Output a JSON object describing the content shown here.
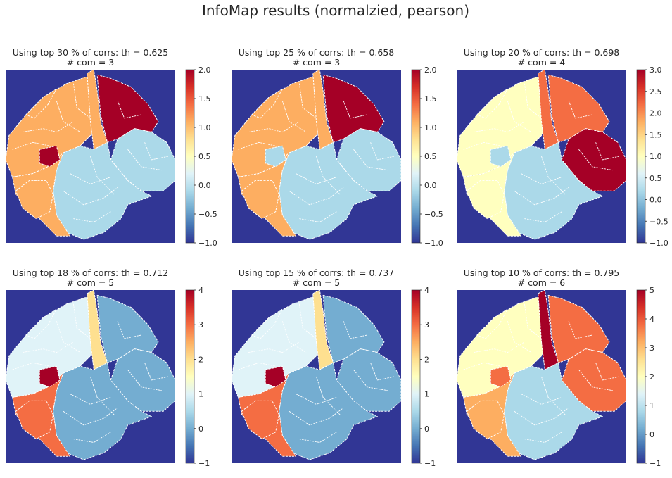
{
  "title": "InfoMap results (normalzied, pearson)",
  "colors": {
    "ocean": "#313695",
    "boundary": "#ffffff",
    "text": "#262626",
    "colormap": [
      "#313695",
      "#4575b4",
      "#74add1",
      "#abd9e9",
      "#e0f3f8",
      "#ffffbf",
      "#fee090",
      "#fdae61",
      "#f46d43",
      "#d73027",
      "#a50026"
    ]
  },
  "chart_data": [
    {
      "type": "heatmap",
      "title": "Using top 30 % of corrs: th = 0.625",
      "subtitle": "# com = 3",
      "vmin": -1,
      "vmax": 2,
      "colorbar_ticks": [
        "2.0",
        "1.5",
        "1.0",
        "0.5",
        "0.0",
        "−0.5",
        "−1.0"
      ],
      "region_values": {
        "left": 1,
        "left_pocket": 1,
        "lower_left": 1,
        "upper_left": 1,
        "north": 1,
        "upper_right": 2,
        "east": 0,
        "south": 0,
        "inset": 2
      }
    },
    {
      "type": "heatmap",
      "title": "Using top 25 % of corrs: th = 0.658",
      "subtitle": "# com = 3",
      "vmin": -1,
      "vmax": 2,
      "colorbar_ticks": [
        "2.0",
        "1.5",
        "1.0",
        "0.5",
        "0.0",
        "−0.5",
        "−1.0"
      ],
      "region_values": {
        "left": 1,
        "left_pocket": 1,
        "lower_left": 1,
        "upper_left": 1,
        "north": 1,
        "upper_right": 2,
        "east": 0,
        "south": 0,
        "inset": 0
      }
    },
    {
      "type": "heatmap",
      "title": "Using top 20 % of corrs: th = 0.698",
      "subtitle": "# com = 4",
      "vmin": -1,
      "vmax": 3,
      "colorbar_ticks": [
        "3.0",
        "2.5",
        "2.0",
        "1.5",
        "1.0",
        "0.5",
        "0.0",
        "−0.5",
        "−1.0"
      ],
      "region_values": {
        "left": 1,
        "left_pocket": 1,
        "lower_left": 1,
        "upper_left": 1,
        "north": 2,
        "upper_right": 2,
        "east": 3,
        "south": 0,
        "inset": 0
      }
    },
    {
      "type": "heatmap",
      "title": "Using top 18 % of corrs: th = 0.712",
      "subtitle": "# com = 5",
      "vmin": -1,
      "vmax": 4,
      "colorbar_ticks": [
        "4",
        "3",
        "2",
        "1",
        "0",
        "−1"
      ],
      "region_values": {
        "left": 1,
        "left_pocket": 3,
        "lower_left": 3,
        "upper_left": 1,
        "north": 2,
        "upper_right": 0,
        "east": 0,
        "south": 0,
        "inset": 4
      }
    },
    {
      "type": "heatmap",
      "title": "Using top 15 % of corrs: th = 0.737",
      "subtitle": "# com = 5",
      "vmin": -1,
      "vmax": 4,
      "colorbar_ticks": [
        "4",
        "3",
        "2",
        "1",
        "0",
        "−1"
      ],
      "region_values": {
        "left": 1,
        "left_pocket": 3,
        "lower_left": 3,
        "upper_left": 1,
        "north": 2,
        "upper_right": 0,
        "east": 0,
        "south": 0,
        "inset": 4
      }
    },
    {
      "type": "heatmap",
      "title": "Using top 10 % of corrs: th = 0.795",
      "subtitle": "# com = 6",
      "vmin": -1,
      "vmax": 5,
      "colorbar_ticks": [
        "5",
        "4",
        "3",
        "2",
        "1",
        "0",
        "−1"
      ],
      "region_values": {
        "left": 2,
        "left_pocket": 3,
        "lower_left": 3,
        "upper_left": 2,
        "north": 5,
        "upper_right": 4,
        "east": 4,
        "south": 1,
        "inset": 4
      }
    }
  ]
}
